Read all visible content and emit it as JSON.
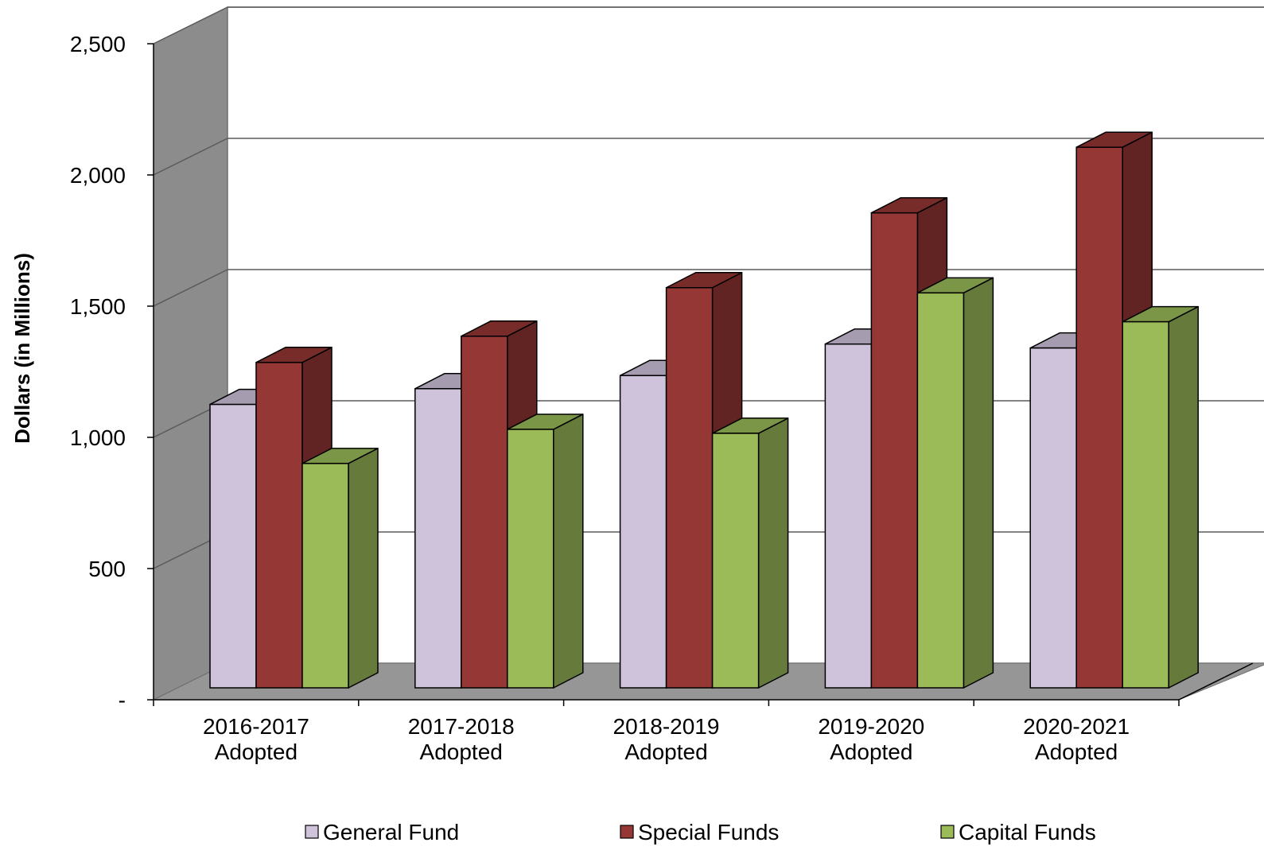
{
  "chart_data": {
    "type": "bar",
    "categories": [
      [
        "2016-2017",
        "Adopted"
      ],
      [
        "2017-2018",
        "Adopted"
      ],
      [
        "2018-2019",
        "Adopted"
      ],
      [
        "2019-2020",
        "Adopted"
      ],
      [
        "2020-2021",
        "Adopted"
      ]
    ],
    "series": [
      {
        "name": "General Fund",
        "values": [
          1080,
          1140,
          1190,
          1310,
          1295
        ],
        "color": "#CFC3DB"
      },
      {
        "name": "Special Funds",
        "values": [
          1240,
          1340,
          1525,
          1810,
          2060
        ],
        "color": "#953735"
      },
      {
        "name": "Capital Funds",
        "values": [
          855,
          985,
          970,
          1505,
          1395
        ],
        "color": "#9BBB59"
      }
    ],
    "title": "",
    "xlabel": "",
    "ylabel": "Dollars (in Millions)",
    "ylim": [
      0,
      2500
    ],
    "yticks": [
      0,
      500,
      1000,
      1500,
      2000,
      2500
    ],
    "ytick_labels": [
      "-",
      "500",
      "1,000",
      "1,500",
      "2,000",
      "2,500"
    ],
    "grid": true,
    "legend": "bottom",
    "colors": {
      "wall": "#8C8C8C",
      "floor": "#969696",
      "gridline": "#5a5a5a"
    }
  }
}
